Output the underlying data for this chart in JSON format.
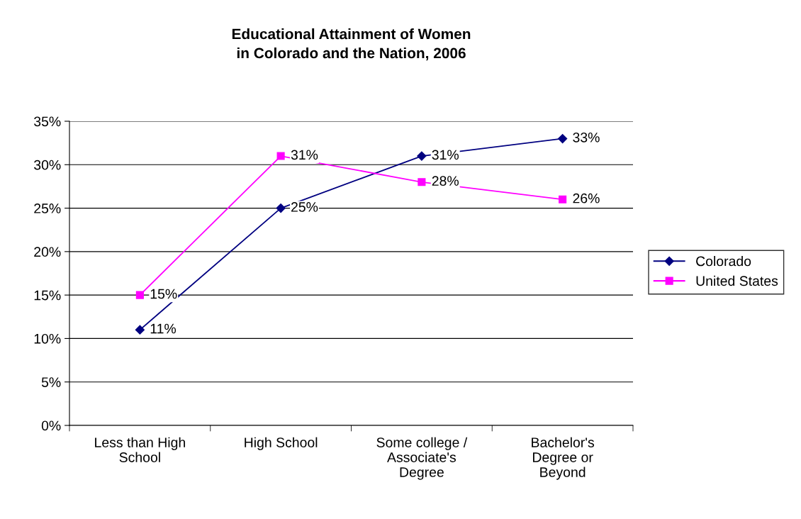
{
  "chart_data": {
    "type": "line",
    "title": "Educational Attainment of Women\nin Colorado and the Nation, 2006",
    "categories": [
      "Less than High School",
      "High School",
      "Some college / Associate's Degree",
      "Bachelor's Degree or Beyond"
    ],
    "series": [
      {
        "name": "Colorado",
        "color": "#000080",
        "marker": "diamond",
        "values": [
          11,
          25,
          31,
          33
        ],
        "value_labels": [
          "11%",
          "25%",
          "31%",
          "33%"
        ]
      },
      {
        "name": "United States",
        "color": "#ff00ff",
        "marker": "square",
        "values": [
          15,
          31,
          28,
          26
        ],
        "value_labels": [
          "15%",
          "31%",
          "28%",
          "26%"
        ]
      }
    ],
    "ylim": [
      0,
      35
    ],
    "yticks": [
      {
        "value": 0,
        "label": "0%"
      },
      {
        "value": 5,
        "label": "5%"
      },
      {
        "value": 10,
        "label": "10%"
      },
      {
        "value": 15,
        "label": "15%"
      },
      {
        "value": 20,
        "label": "20%"
      },
      {
        "value": 25,
        "label": "25%"
      },
      {
        "value": 30,
        "label": "30%"
      },
      {
        "value": 35,
        "label": "35%"
      }
    ],
    "grid": "y",
    "legend": "right",
    "line_style": "solid"
  }
}
